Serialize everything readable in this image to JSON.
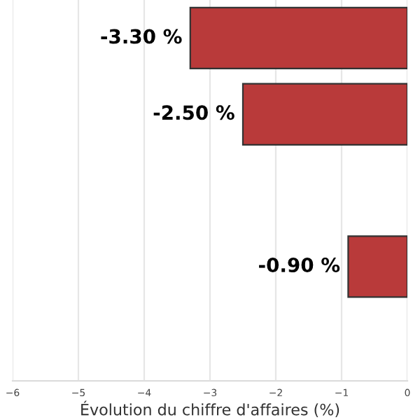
{
  "chart_data": {
    "type": "bar",
    "orientation": "horizontal",
    "xlabel": "Évolution du chiffre d'affaires (%)",
    "categories": [
      null,
      null,
      null,
      null,
      null
    ],
    "values": [
      -3.3,
      -2.5,
      null,
      -0.9,
      null
    ],
    "value_labels": [
      "-3.30 %",
      "-2.50 %",
      null,
      "-0.90 %",
      null
    ],
    "color": "#b93a3a",
    "xlim": [
      -6,
      0
    ],
    "xticks": [
      {
        "value": -6,
        "label": "−6"
      },
      {
        "value": -5,
        "label": "−5"
      },
      {
        "value": -4,
        "label": "−4"
      },
      {
        "value": -3,
        "label": "−3"
      },
      {
        "value": -2,
        "label": "−2"
      },
      {
        "value": -1,
        "label": "−1"
      },
      0
    ],
    "grid": "x",
    "tick_labels": "x"
  }
}
